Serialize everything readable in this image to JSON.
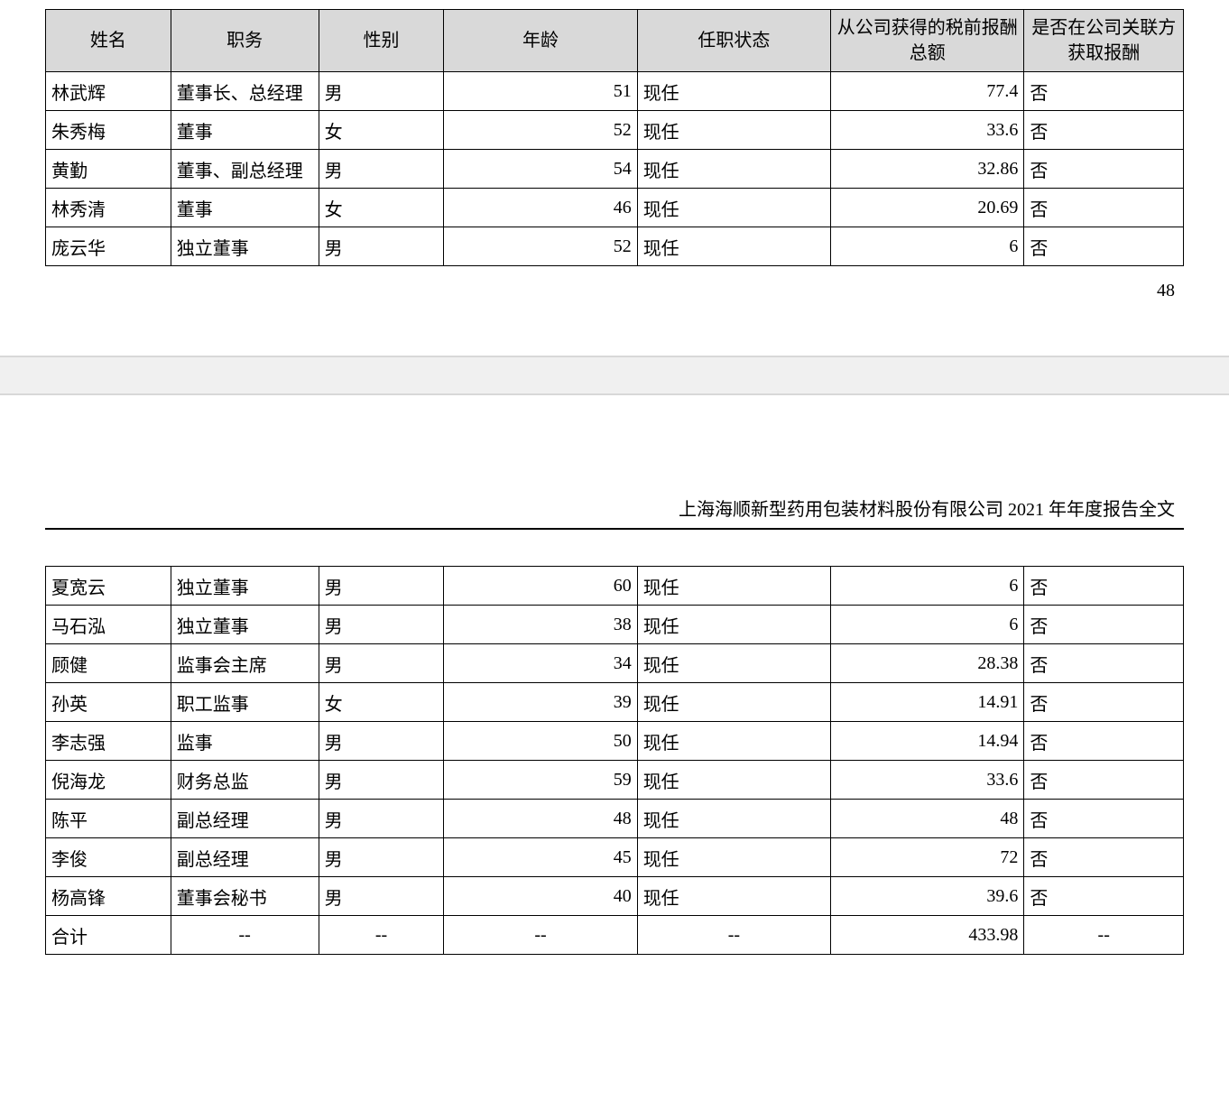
{
  "doc_title": "上海海顺新型药用包装材料股份有限公司 2021 年年度报告全文",
  "page_number": "48",
  "header_bg": "#d9d9d9",
  "border_color": "#000000",
  "font_family": "SimSun",
  "font_size_pt": 15,
  "columns": [
    {
      "label": "姓名",
      "width": "11%",
      "align": "center"
    },
    {
      "label": "职务",
      "width": "13%",
      "align": "center"
    },
    {
      "label": "性别",
      "width": "11%",
      "align": "center"
    },
    {
      "label": "年龄",
      "width": "17%",
      "align": "center"
    },
    {
      "label": "任职状态",
      "width": "17%",
      "align": "center"
    },
    {
      "label": "从公司获得的税前报酬总额",
      "width": "17%",
      "align": "center"
    },
    {
      "label": "是否在公司关联方获取报酬",
      "width": "14%",
      "align": "center"
    }
  ],
  "col_align_body": [
    "left",
    "left",
    "left",
    "right",
    "left",
    "right",
    "left"
  ],
  "table1_rows": [
    [
      "林武辉",
      "董事长、总经理",
      "男",
      "51",
      "现任",
      "77.4",
      "否"
    ],
    [
      "朱秀梅",
      "董事",
      "女",
      "52",
      "现任",
      "33.6",
      "否"
    ],
    [
      "黄勤",
      "董事、副总经理",
      "男",
      "54",
      "现任",
      "32.86",
      "否"
    ],
    [
      "林秀清",
      "董事",
      "女",
      "46",
      "现任",
      "20.69",
      "否"
    ],
    [
      "庞云华",
      "独立董事",
      "男",
      "52",
      "现任",
      "6",
      "否"
    ]
  ],
  "table2_rows": [
    [
      "夏宽云",
      "独立董事",
      "男",
      "60",
      "现任",
      "6",
      "否"
    ],
    [
      "马石泓",
      "独立董事",
      "男",
      "38",
      "现任",
      "6",
      "否"
    ],
    [
      "顾健",
      "监事会主席",
      "男",
      "34",
      "现任",
      "28.38",
      "否"
    ],
    [
      "孙英",
      "职工监事",
      "女",
      "39",
      "现任",
      "14.91",
      "否"
    ],
    [
      "李志强",
      "监事",
      "男",
      "50",
      "现任",
      "14.94",
      "否"
    ],
    [
      "倪海龙",
      "财务总监",
      "男",
      "59",
      "现任",
      "33.6",
      "否"
    ],
    [
      "陈平",
      "副总经理",
      "男",
      "48",
      "现任",
      "48",
      "否"
    ],
    [
      "李俊",
      "副总经理",
      "男",
      "45",
      "现任",
      "72",
      "否"
    ],
    [
      "杨高锋",
      "董事会秘书",
      "男",
      "40",
      "现任",
      "39.6",
      "否"
    ]
  ],
  "total_row": {
    "label": "合计",
    "dash": "--",
    "value": "433.98"
  }
}
